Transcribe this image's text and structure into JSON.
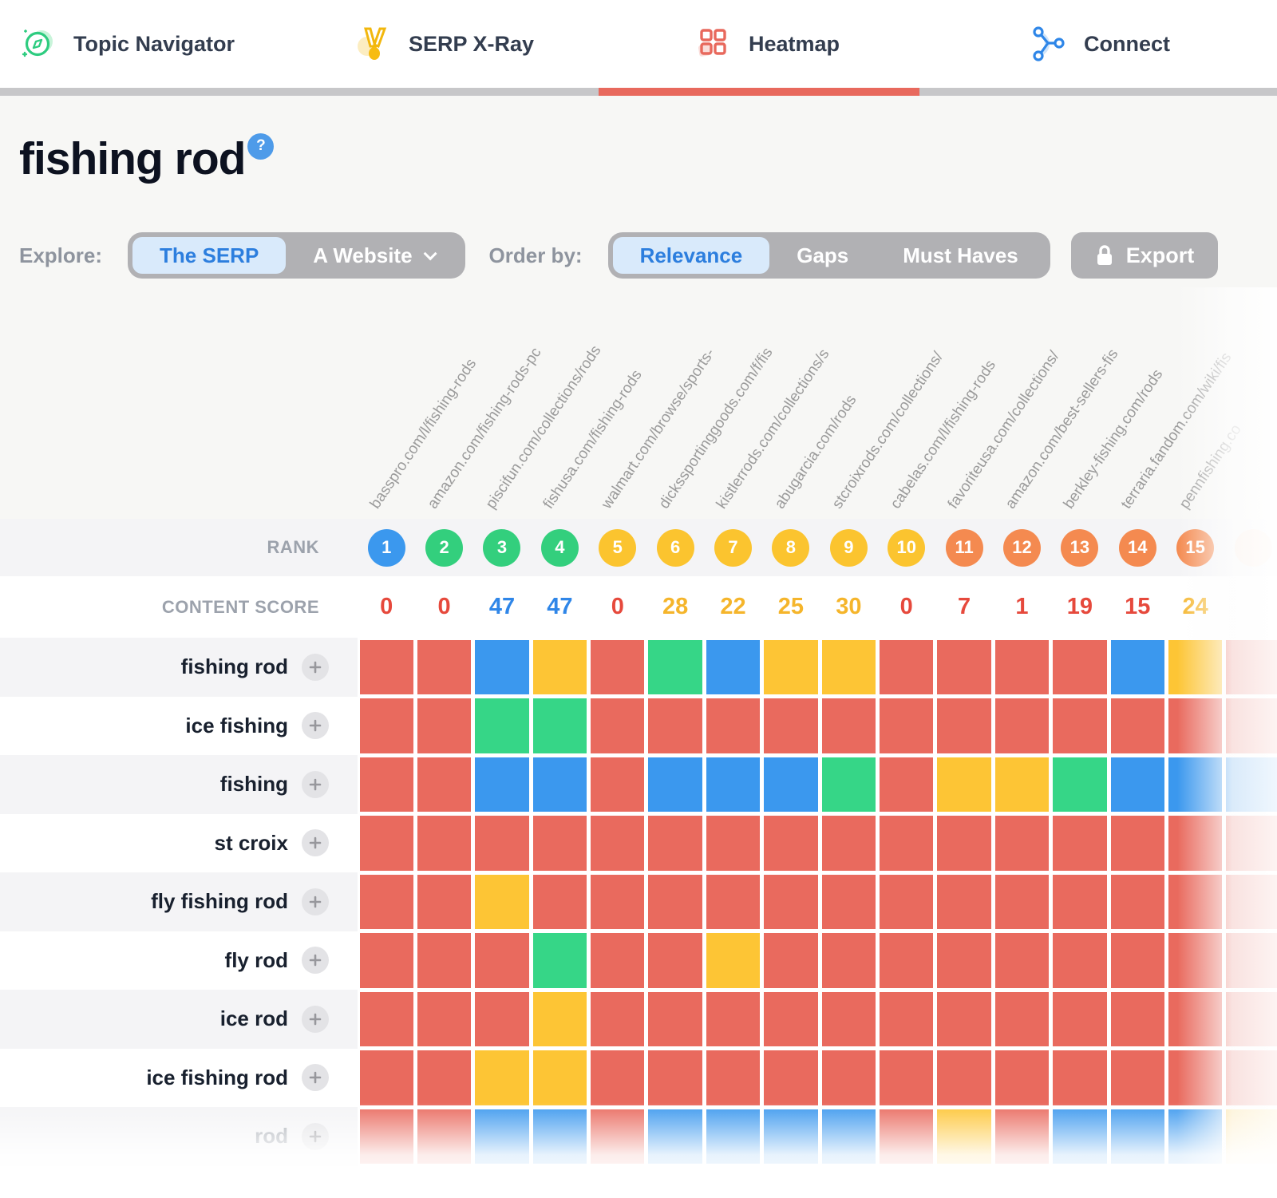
{
  "nav": {
    "tabs": [
      {
        "label": "Topic Navigator",
        "icon": "compass-icon",
        "active": false
      },
      {
        "label": "SERP X-Ray",
        "icon": "medal-icon",
        "active": false
      },
      {
        "label": "Heatmap",
        "icon": "grid-icon",
        "active": true
      },
      {
        "label": "Connect",
        "icon": "share-icon",
        "active": false
      }
    ]
  },
  "header": {
    "title": "fishing rod",
    "help_badge": "?"
  },
  "controls": {
    "explore_label": "Explore:",
    "explore_options": [
      "The SERP",
      "A Website"
    ],
    "explore_selected": "The SERP",
    "order_label": "Order by:",
    "order_options": [
      "Relevance",
      "Gaps",
      "Must Haves"
    ],
    "order_selected": "Relevance",
    "export_label": "Export"
  },
  "table": {
    "rank_label": "RANK",
    "content_score_label": "CONTENT SCORE",
    "columns": [
      {
        "url": "basspro.com/l/fishing-rods",
        "rank": "1",
        "rank_color": "blue",
        "score": "0",
        "score_color": "red"
      },
      {
        "url": "amazon.com/fishing-rods-pc",
        "rank": "2",
        "rank_color": "green",
        "score": "0",
        "score_color": "red"
      },
      {
        "url": "piscifun.com/collections/rods",
        "rank": "3",
        "rank_color": "green",
        "score": "47",
        "score_color": "blue"
      },
      {
        "url": "fishusa.com/fishing-rods",
        "rank": "4",
        "rank_color": "green",
        "score": "47",
        "score_color": "blue"
      },
      {
        "url": "walmart.com/browse/sports-",
        "rank": "5",
        "rank_color": "yellow",
        "score": "0",
        "score_color": "red"
      },
      {
        "url": "dickssportinggoods.com/f/fis",
        "rank": "6",
        "rank_color": "yellow",
        "score": "28",
        "score_color": "yellow"
      },
      {
        "url": "kistlerrods.com/collections/s",
        "rank": "7",
        "rank_color": "yellow",
        "score": "22",
        "score_color": "yellow"
      },
      {
        "url": "abugarcia.com/rods",
        "rank": "8",
        "rank_color": "yellow",
        "score": "25",
        "score_color": "yellow"
      },
      {
        "url": "stcroixrods.com/collections/",
        "rank": "9",
        "rank_color": "yellow",
        "score": "30",
        "score_color": "yellow"
      },
      {
        "url": "cabelas.com/l/fishing-rods",
        "rank": "10",
        "rank_color": "yellow",
        "score": "0",
        "score_color": "red"
      },
      {
        "url": "favoriteusa.com/collections/",
        "rank": "11",
        "rank_color": "orange",
        "score": "7",
        "score_color": "red"
      },
      {
        "url": "amazon.com/best-sellers-fis",
        "rank": "12",
        "rank_color": "orange",
        "score": "1",
        "score_color": "red"
      },
      {
        "url": "berkley-fishing.com/rods",
        "rank": "13",
        "rank_color": "orange",
        "score": "19",
        "score_color": "red"
      },
      {
        "url": "terraria.fandom.com/wiki/fis",
        "rank": "14",
        "rank_color": "orange",
        "score": "15",
        "score_color": "red"
      },
      {
        "url": "pennfishing.co",
        "rank": "15",
        "rank_color": "orange",
        "score": "24",
        "score_color": "yellow"
      },
      {
        "url": "",
        "rank": "",
        "rank_color": "faded",
        "score": "",
        "score_color": "red"
      }
    ],
    "rows": [
      {
        "keyword": "fishing rod",
        "cells": [
          "red",
          "red",
          "blue",
          "yellow",
          "red",
          "green",
          "blue",
          "yellow",
          "yellow",
          "red",
          "red",
          "red",
          "red",
          "blue",
          "yellow",
          "red"
        ]
      },
      {
        "keyword": "ice fishing",
        "cells": [
          "red",
          "red",
          "green",
          "green",
          "red",
          "red",
          "red",
          "red",
          "red",
          "red",
          "red",
          "red",
          "red",
          "red",
          "red",
          "red"
        ]
      },
      {
        "keyword": "fishing",
        "cells": [
          "red",
          "red",
          "blue",
          "blue",
          "red",
          "blue",
          "blue",
          "blue",
          "green",
          "red",
          "yellow",
          "yellow",
          "green",
          "blue",
          "blue",
          "blue"
        ]
      },
      {
        "keyword": "st croix",
        "cells": [
          "red",
          "red",
          "red",
          "red",
          "red",
          "red",
          "red",
          "red",
          "red",
          "red",
          "red",
          "red",
          "red",
          "red",
          "red",
          "red"
        ]
      },
      {
        "keyword": "fly fishing rod",
        "cells": [
          "red",
          "red",
          "yellow",
          "red",
          "red",
          "red",
          "red",
          "red",
          "red",
          "red",
          "red",
          "red",
          "red",
          "red",
          "red",
          "red"
        ]
      },
      {
        "keyword": "fly rod",
        "cells": [
          "red",
          "red",
          "red",
          "green",
          "red",
          "red",
          "yellow",
          "red",
          "red",
          "red",
          "red",
          "red",
          "red",
          "red",
          "red",
          "red"
        ]
      },
      {
        "keyword": "ice rod",
        "cells": [
          "red",
          "red",
          "red",
          "yellow",
          "red",
          "red",
          "red",
          "red",
          "red",
          "red",
          "red",
          "red",
          "red",
          "red",
          "red",
          "red"
        ]
      },
      {
        "keyword": "ice fishing rod",
        "cells": [
          "red",
          "red",
          "yellow",
          "yellow",
          "red",
          "red",
          "red",
          "red",
          "red",
          "red",
          "red",
          "red",
          "red",
          "red",
          "red",
          "red"
        ]
      },
      {
        "keyword": "rod",
        "cells": [
          "red",
          "red",
          "blue",
          "blue",
          "red",
          "blue",
          "blue",
          "blue",
          "blue",
          "red",
          "yellow",
          "red",
          "blue",
          "blue",
          "blue",
          "yellow"
        ]
      }
    ]
  },
  "colors": {
    "accent_red": "#E8695D",
    "cell": {
      "red": "#E96A5E",
      "blue": "#3B98EE",
      "yellow": "#FDC535",
      "green": "#36D687"
    },
    "rank": {
      "blue": "#3B98EE",
      "green": "#33CF7D",
      "yellow": "#FBC42F",
      "orange": "#F48A50",
      "faded": "#FAE4D6"
    },
    "score": {
      "red": "#E6493C",
      "blue": "#2F86E8",
      "yellow": "#F5B52B"
    }
  }
}
